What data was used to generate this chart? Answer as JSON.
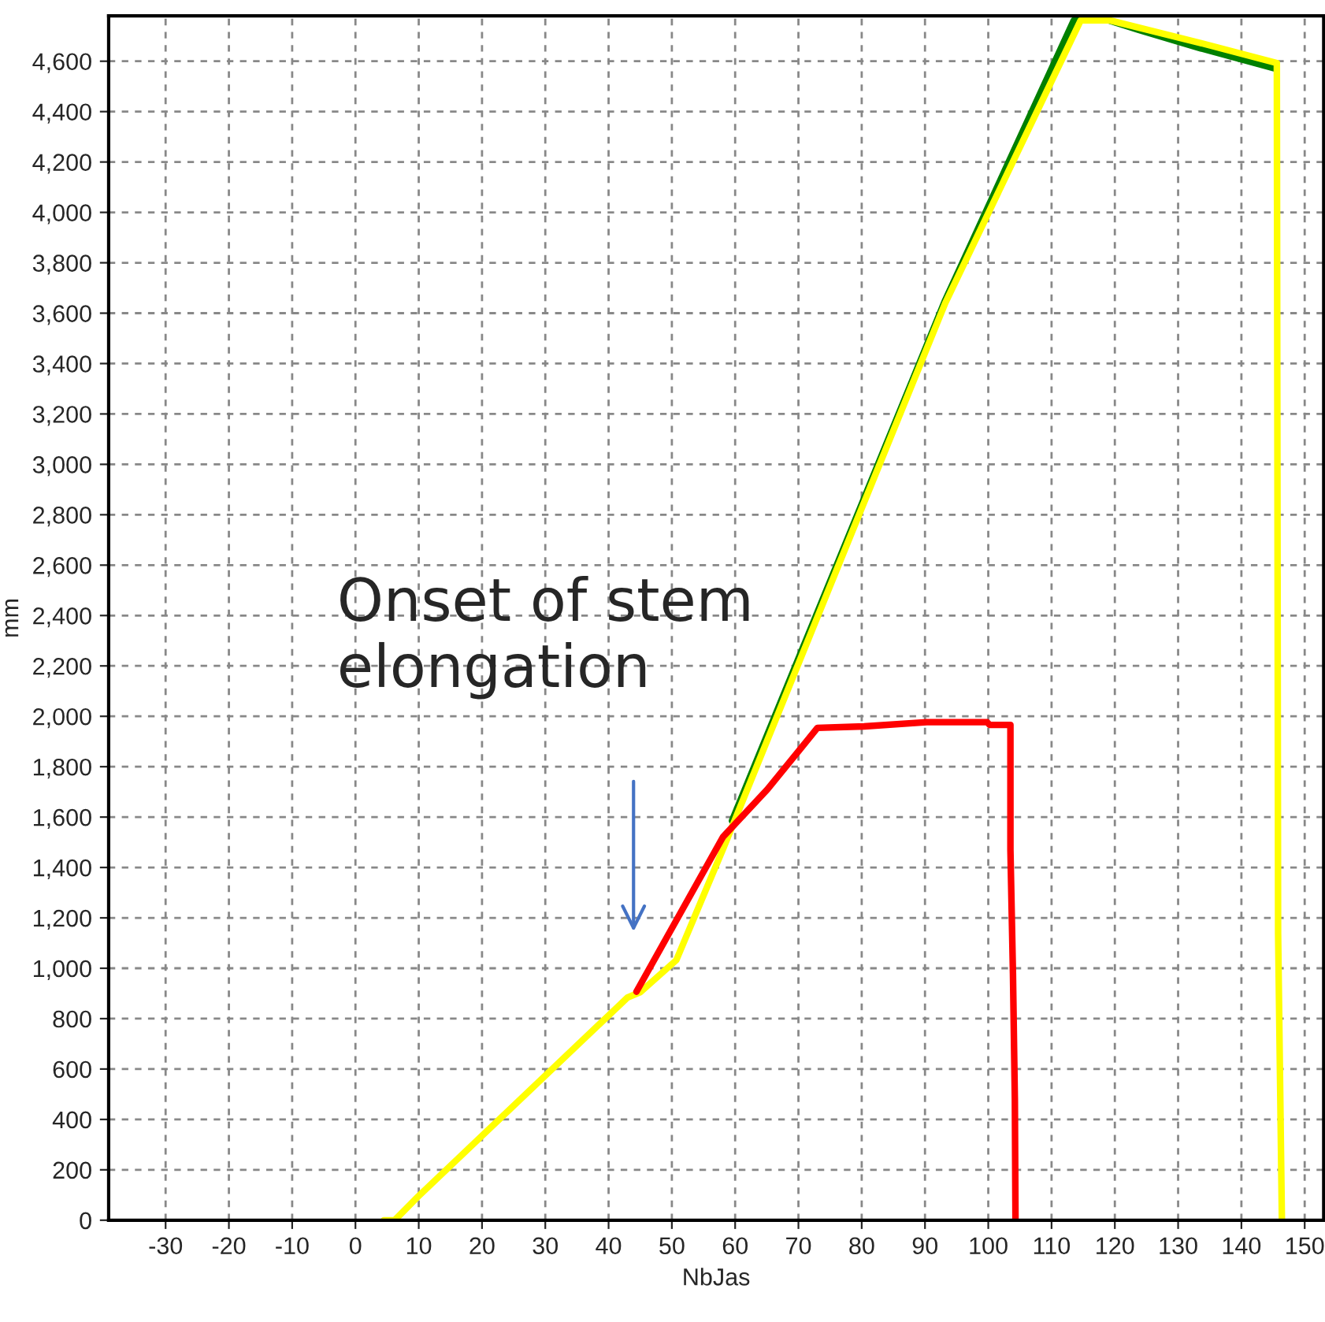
{
  "chart_data": {
    "type": "line",
    "xlabel": "NbJas",
    "ylabel": "mm",
    "xlim": [
      -39,
      153
    ],
    "ylim": [
      0,
      4780
    ],
    "xticks": [
      -30,
      -20,
      -10,
      0,
      10,
      20,
      30,
      40,
      50,
      60,
      70,
      80,
      90,
      100,
      110,
      120,
      130,
      140,
      150
    ],
    "yticks": [
      0,
      200,
      400,
      600,
      800,
      {
        "value": 1000,
        "label": "1,000"
      },
      {
        "value": 1200,
        "label": "1,200"
      },
      {
        "value": 1400,
        "label": "1,400"
      },
      {
        "value": 1600,
        "label": "1,600"
      },
      {
        "value": 1800,
        "label": "1,800"
      },
      {
        "value": 2000,
        "label": "2,000"
      },
      {
        "value": 2200,
        "label": "2,200"
      },
      {
        "value": 2400,
        "label": "2,400"
      },
      {
        "value": 2600,
        "label": "2,600"
      },
      {
        "value": 2800,
        "label": "2,800"
      },
      {
        "value": 3000,
        "label": "3,000"
      },
      {
        "value": 3200,
        "label": "3,200"
      },
      {
        "value": 3400,
        "label": "3,400"
      },
      {
        "value": 3600,
        "label": "3,600"
      },
      {
        "value": 3800,
        "label": "3,800"
      },
      {
        "value": 4000,
        "label": "4,000"
      },
      {
        "value": 4200,
        "label": "4,200"
      },
      {
        "value": 4400,
        "label": "4,400"
      },
      {
        "value": 4600,
        "label": "4,600"
      }
    ],
    "grid": true,
    "legend": false,
    "marker": "none",
    "line_style": "solid",
    "series": [
      {
        "color": "#008000",
        "x": [
          59.5,
          93.2,
          113.5,
          119,
          123.7,
          133.6,
          145.2
        ],
        "values": [
          1585,
          3652,
          4762,
          4762,
          4725,
          4651,
          4572
        ]
      },
      {
        "color": "#ffff00",
        "x": [
          4.5,
          6.2,
          9.9,
          43,
          45,
          50.7,
          58.1,
          73.1,
          93.2,
          114.6,
          119.2,
          133.6,
          145.6,
          145.8,
          146.4
        ],
        "values": [
          0,
          0,
          94,
          884,
          905,
          1032,
          1474,
          2400,
          3640,
          4762,
          4762,
          4672,
          4593,
          1136,
          0
        ]
      },
      {
        "color": "#ff0000",
        "x": [
          44.4,
          58.1,
          65.1,
          73,
          80.4,
          90.3,
          99.8,
          100.2,
          103.5,
          103.5,
          103.9,
          104.2,
          104.3
        ],
        "values": [
          907,
          1522,
          1710,
          1954,
          1960,
          1977,
          1977,
          1966,
          1966,
          1470,
          980,
          479,
          0
        ]
      }
    ],
    "annotations": [
      "Onset of stem\nelongation"
    ]
  }
}
